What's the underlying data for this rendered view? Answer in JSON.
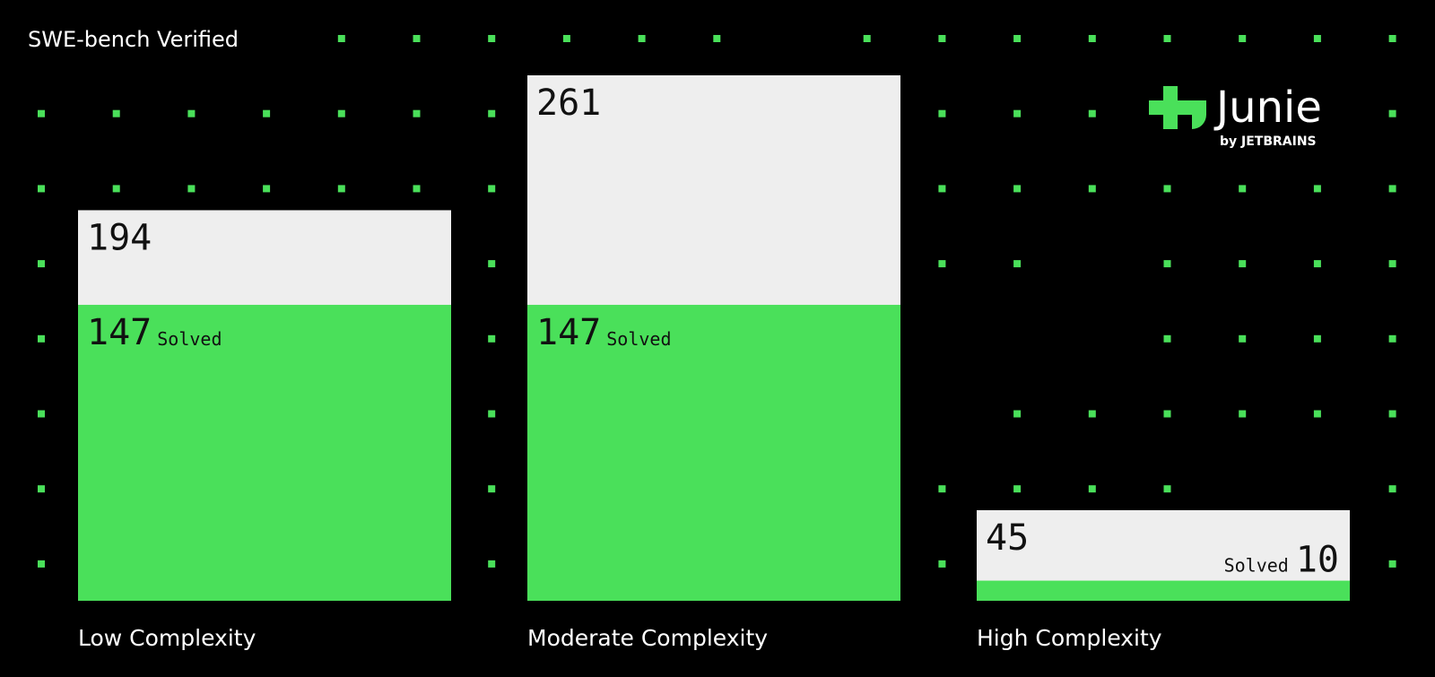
{
  "chart_data": {
    "type": "bar",
    "title": "SWE-bench Verified",
    "categories": [
      "Low Complexity",
      "Moderate Complexity",
      "High Complexity"
    ],
    "series": [
      {
        "color": "#eeeeee",
        "values": [
          194,
          261,
          45
        ]
      },
      {
        "name": "Solved",
        "color": "#4ae05a",
        "values": [
          147,
          147,
          10
        ]
      }
    ]
  },
  "logo": {
    "name": "Junie",
    "byline": "by JETBRAINS"
  }
}
